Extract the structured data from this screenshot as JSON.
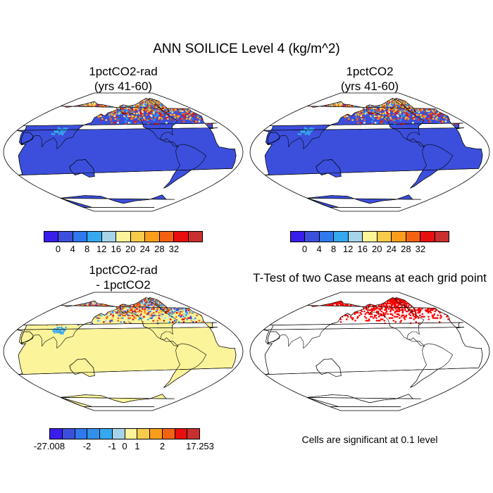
{
  "title": "ANN SOILICE Level 4 (kg/m^2)",
  "panels": [
    {
      "title_line1": "1pctCO2-rad",
      "title_line2": "(yrs 41-60)"
    },
    {
      "title_line1": "1pctCO2",
      "title_line2": "(yrs 41-60)"
    },
    {
      "title_line1": "1pctCO2-rad",
      "title_line2": "- 1pctCO2"
    },
    {
      "title_line1": "T-Test of two Case means at each grid point"
    }
  ],
  "colorbar_abs": {
    "colors": [
      "#3a1eeb",
      "#3c4fdc",
      "#2f78ee",
      "#35a8ee",
      "#a5d3ea",
      "#fbf49a",
      "#f9cb4a",
      "#f89d1c",
      "#f26212",
      "#e80f0f",
      "#c8302e"
    ],
    "labels": [
      "0",
      "4",
      "8",
      "12",
      "16",
      "20",
      "24",
      "28",
      "32"
    ]
  },
  "colorbar_diff": {
    "colors": [
      "#3a1eeb",
      "#3c4fdc",
      "#2f78ee",
      "#3190e8",
      "#35a8ee",
      "#a5d3ea",
      "#fbf49a",
      "#f9cb4a",
      "#f89d1c",
      "#f26212",
      "#e80f0f",
      "#c8302e"
    ],
    "labels": [
      "-27.008",
      "-2",
      "-1",
      "0",
      "1",
      "2",
      "17.253"
    ]
  },
  "footnote": "Cells are significant at 0.1 level",
  "colors": {
    "ocean": "#ffffff",
    "land_abs": "#3c4fdc",
    "land_diff": "#fbf49a",
    "significant": "#ff0000"
  }
}
